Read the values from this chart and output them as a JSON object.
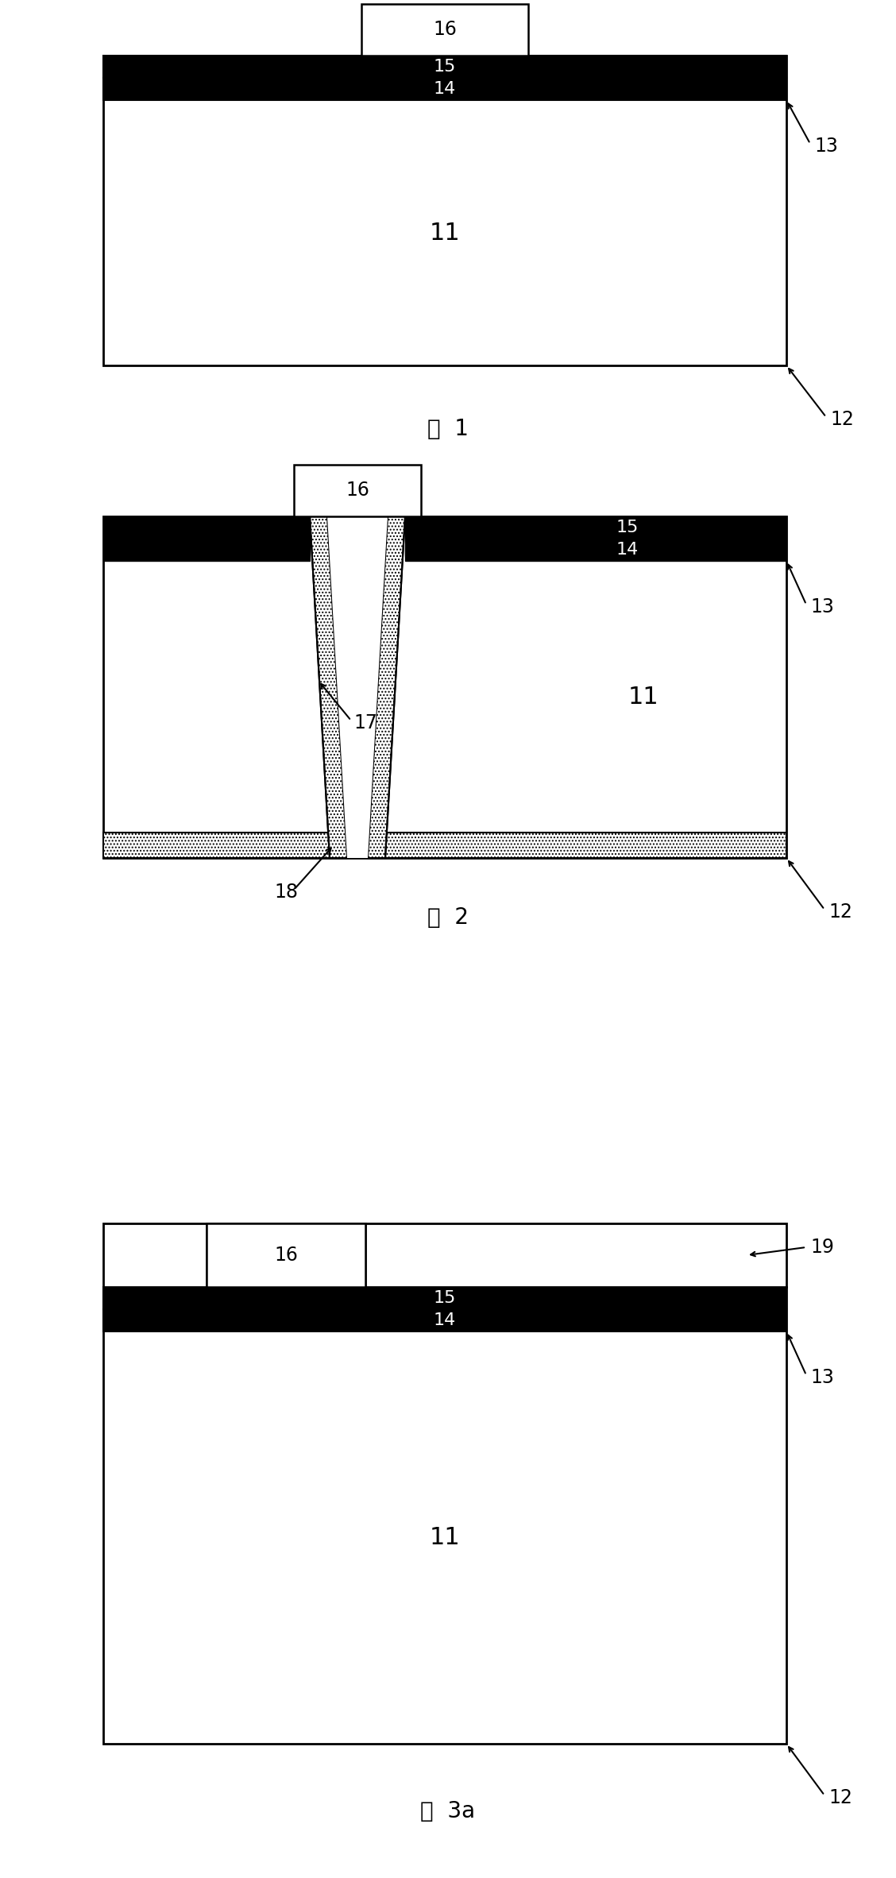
{
  "bg_color": "#ffffff",
  "fig_width": 11.28,
  "fig_height": 23.64,
  "dpi": 100,
  "line_color": "#000000",
  "hatch_dot": "....",
  "diagrams": [
    {
      "label": "图  1"
    },
    {
      "label": "图  2"
    },
    {
      "label": "图  3a"
    }
  ]
}
